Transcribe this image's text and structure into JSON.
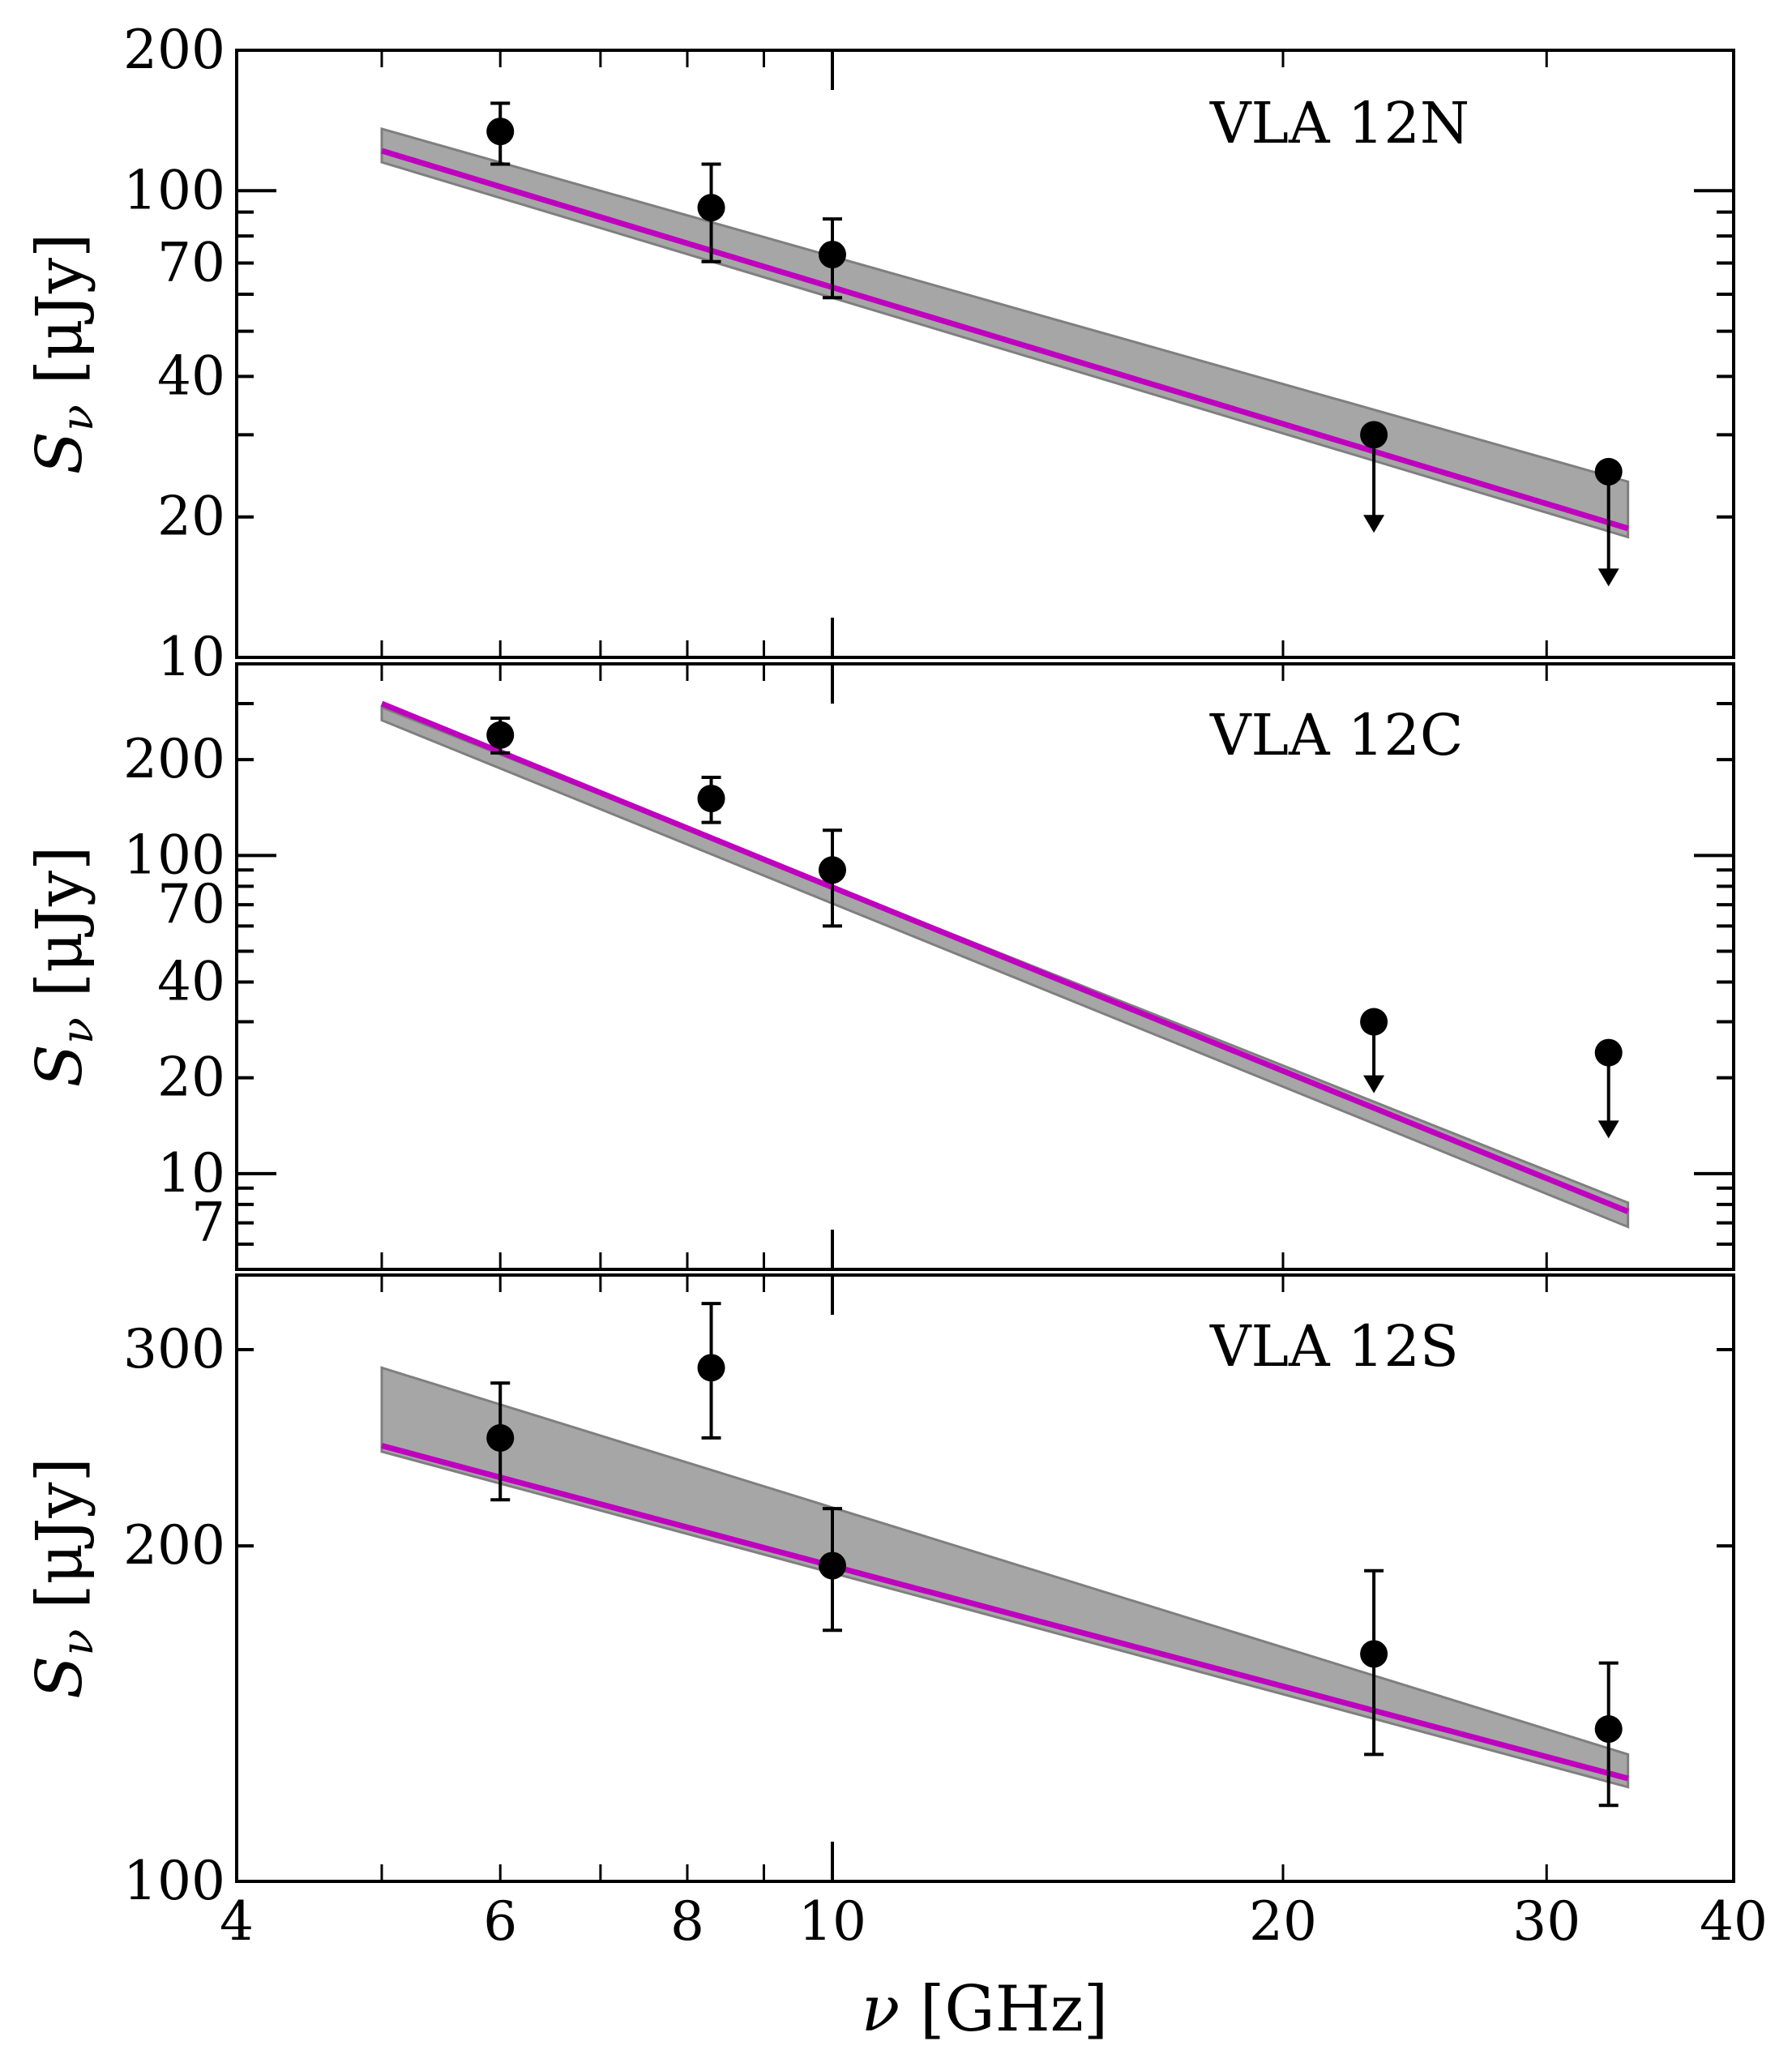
{
  "chart_data": {
    "type": "scatter",
    "x_axis": {
      "label": "ν [GHz]",
      "scale": "log",
      "xlim": [
        4,
        40
      ],
      "tick_labels": [
        "4",
        "6",
        "8",
        "10",
        "20",
        "30",
        "40"
      ],
      "tick_values": [
        4,
        6,
        8,
        10,
        20,
        30,
        40
      ],
      "minor_ticks": [
        5,
        6,
        7,
        8,
        9,
        20,
        30
      ],
      "major_ticks": [
        10
      ]
    },
    "y_label": "S_ν [μJy]",
    "panels": [
      {
        "label": "VLA 12N",
        "yscale": "log",
        "ylim": [
          10,
          200
        ],
        "ytick_labels": [
          "10",
          "20",
          "40",
          "70",
          "100",
          "200"
        ],
        "ytick_values": [
          10,
          20,
          40,
          70,
          100,
          200
        ],
        "minor_yticks": [
          20,
          30,
          40,
          50,
          60,
          70,
          80,
          90,
          200
        ],
        "major_yticks": [
          10,
          100
        ],
        "points": [
          {
            "freq": 6.0,
            "flux": 134,
            "err_low": 114,
            "err_high": 154,
            "upper_limit": false
          },
          {
            "freq": 8.3,
            "flux": 92,
            "err_low": 70.5,
            "err_high": 114,
            "upper_limit": false
          },
          {
            "freq": 10.0,
            "flux": 73,
            "err_low": 59,
            "err_high": 87,
            "upper_limit": false
          },
          {
            "freq": 23.0,
            "flux": 30,
            "upper_limit": true,
            "arrow_to": 18.5
          },
          {
            "freq": 33.0,
            "flux": 25,
            "upper_limit": true,
            "arrow_to": 14.2
          }
        ],
        "fit_line": {
          "x": [
            5,
            34
          ],
          "y": [
            121.8,
            18.9
          ]
        },
        "band": {
          "x": [
            5,
            34
          ],
          "upper": [
            135.7,
            23.8
          ],
          "lower": [
            115.1,
            18.1
          ]
        }
      },
      {
        "label": "VLA 12C",
        "yscale": "log",
        "ylim": [
          5,
          400
        ],
        "ytick_labels": [
          "7",
          "10",
          "20",
          "40",
          "70",
          "100",
          "200"
        ],
        "ytick_values": [
          7,
          10,
          20,
          40,
          70,
          100,
          200
        ],
        "minor_yticks": [
          5,
          6,
          7,
          8,
          9,
          20,
          30,
          40,
          50,
          60,
          70,
          80,
          90,
          200,
          300,
          400
        ],
        "major_yticks": [
          10,
          100
        ],
        "points": [
          {
            "freq": 6.0,
            "flux": 239,
            "err_low": 210,
            "err_high": 270,
            "upper_limit": false
          },
          {
            "freq": 8.3,
            "flux": 151,
            "err_low": 127,
            "err_high": 176,
            "upper_limit": false
          },
          {
            "freq": 10.0,
            "flux": 90,
            "err_low": 60,
            "err_high": 120,
            "upper_limit": false
          },
          {
            "freq": 23.0,
            "flux": 30,
            "upper_limit": true,
            "arrow_to": 17.9
          },
          {
            "freq": 33.0,
            "flux": 24,
            "upper_limit": true,
            "arrow_to": 12.9
          }
        ],
        "fit_line": {
          "x": [
            5,
            34
          ],
          "y": [
            300,
            7.6
          ]
        },
        "band": {
          "x": [
            5,
            34
          ],
          "upper": [
            292,
            8.1
          ],
          "lower": [
            266,
            6.8
          ]
        }
      },
      {
        "label": "VLA 12S",
        "yscale": "log",
        "ylim": [
          100,
          350
        ],
        "ytick_labels": [
          "100",
          "200",
          "300"
        ],
        "ytick_values": [
          100,
          200,
          300
        ],
        "minor_yticks": [
          200,
          300
        ],
        "major_yticks": [
          100
        ],
        "points": [
          {
            "freq": 6.0,
            "flux": 250,
            "err_low": 220,
            "err_high": 280,
            "upper_limit": false
          },
          {
            "freq": 8.3,
            "flux": 289,
            "err_low": 250,
            "err_high": 330,
            "upper_limit": false
          },
          {
            "freq": 10.0,
            "flux": 192,
            "err_low": 168,
            "err_high": 216,
            "upper_limit": false
          },
          {
            "freq": 23.0,
            "flux": 160,
            "err_low": 130,
            "err_high": 190,
            "upper_limit": false
          },
          {
            "freq": 33.0,
            "flux": 137,
            "err_low": 117,
            "err_high": 157,
            "upper_limit": false
          }
        ],
        "fit_line": {
          "x": [
            5,
            34
          ],
          "y": [
            246,
            123.7
          ]
        },
        "band": {
          "x": [
            5,
            34
          ],
          "upper": [
            289,
            130
          ],
          "lower": [
            243,
            121.5
          ]
        }
      }
    ],
    "colors": {
      "fit_line": "#bf00bf",
      "band_fill": "#a6a6a6",
      "band_edge": "#7f7f7f",
      "points": "#000000"
    }
  }
}
